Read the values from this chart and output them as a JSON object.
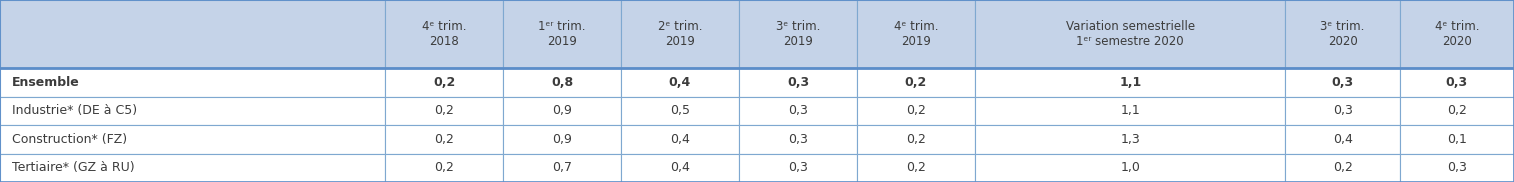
{
  "header_bg": "#c5d3e8",
  "row_bg": "#ffffff",
  "border_color": "#7fa8d0",
  "text_color": "#3c3c3c",
  "col_headers": [
    "4ᵉ trim.\n2018",
    "1ᵉʳ trim.\n2019",
    "2ᵉ trim.\n2019",
    "3ᵉ trim.\n2019",
    "4ᵉ trim.\n2019",
    "Variation semestrielle\n1ᵉʳ semestre 2020",
    "3ᵉ trim.\n2020",
    "4ᵉ trim.\n2020"
  ],
  "row_labels": [
    "Ensemble",
    "Industrie* (DE à C5)",
    "Construction* (FZ)",
    "Tertiaire* (GZ à RU)"
  ],
  "row_bold": [
    true,
    false,
    false,
    false
  ],
  "data": [
    [
      "0,2",
      "0,8",
      "0,4",
      "0,3",
      "0,2",
      "1,1",
      "0,3",
      "0,3"
    ],
    [
      "0,2",
      "0,9",
      "0,5",
      "0,3",
      "0,2",
      "1,1",
      "0,3",
      "0,2"
    ],
    [
      "0,2",
      "0,9",
      "0,4",
      "0,3",
      "0,2",
      "1,3",
      "0,4",
      "0,1"
    ],
    [
      "0,2",
      "0,7",
      "0,4",
      "0,3",
      "0,2",
      "1,0",
      "0,2",
      "0,3"
    ]
  ],
  "figsize": [
    15.14,
    1.82
  ],
  "dpi": 100
}
